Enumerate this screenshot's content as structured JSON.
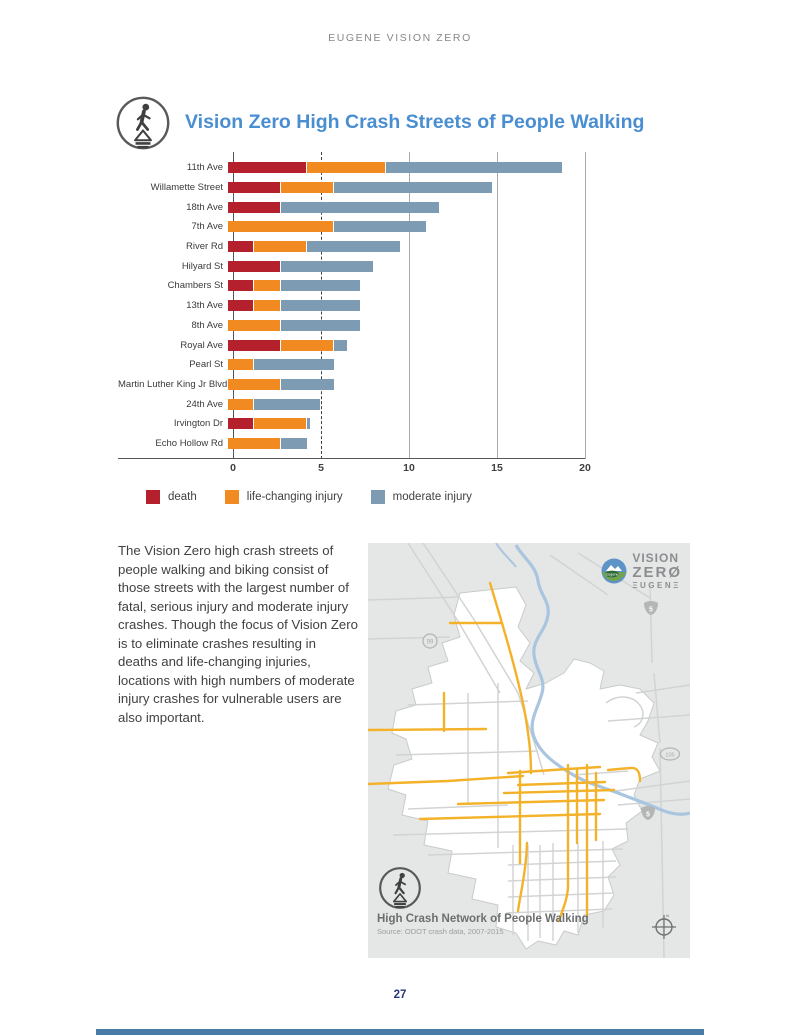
{
  "page": {
    "header": "EUGENE VISION ZERO",
    "page_number": "27",
    "footer_bar_color": "#4a7ba6"
  },
  "section": {
    "title": "Vision Zero High Crash Streets of People Walking",
    "title_color": "#4a8ed2",
    "icon": "pedestrian-signal-icon"
  },
  "chart_data": {
    "type": "bar",
    "orientation": "horizontal",
    "stacked": true,
    "categories": [
      "11th Ave",
      "Willamette Street",
      "18th Ave",
      "7th Ave",
      "River Rd",
      "Hilyard St",
      "Chambers St",
      "13th Ave",
      "8th Ave",
      "Royal  Ave",
      "Pearl St",
      "Martin Luther King Jr Blvd",
      "24th Ave",
      "Irvington Dr",
      "Echo Hollow Rd"
    ],
    "series": [
      {
        "name": "death",
        "color": "#b5202d",
        "values": [
          4.5,
          3,
          3,
          0,
          1.5,
          3,
          1.5,
          1.5,
          0,
          3,
          0,
          0,
          0,
          1.5,
          0
        ]
      },
      {
        "name": "life-changing injury",
        "color": "#f18a21",
        "values": [
          4.5,
          3,
          0,
          6,
          3,
          0,
          1.5,
          1.5,
          3,
          3,
          1.5,
          3,
          1.5,
          3,
          3
        ]
      },
      {
        "name": "moderate injury",
        "color": "#7d9cb3",
        "values": [
          10,
          9,
          9,
          5.25,
          5.25,
          5.25,
          4.5,
          4.5,
          4.5,
          0.75,
          4.5,
          3,
          3.75,
          0.15,
          1.5
        ]
      }
    ],
    "xlim": [
      0,
      20
    ],
    "x_ticks": [
      0,
      5,
      10,
      15,
      20
    ],
    "legend_position": "bottom",
    "grid": "vertical"
  },
  "body_text": "The Vision Zero high crash streets of people walking and biking consist of those streets with the largest number of fatal, serious injury and moderate injury crashes. Though the focus of Vision Zero is to eliminate crashes resulting in deaths and life-changing injuries, locations with high numbers of moderate injury crashes for vulnerable users are also important.",
  "map": {
    "logo": {
      "line1": "VISION",
      "line2": "ZERØ",
      "line3": "ΞUGENΞ",
      "badge_label": "Eugene",
      "icon": "eugene-logo"
    },
    "badges": {
      "hwy99": "99",
      "i5_top": "5",
      "hwy105": "105",
      "i5_bottom": "5"
    },
    "caption_title": "High Crash Network of People Walking",
    "caption_source": "Source: ODOT crash data, 2007-2015",
    "icons": [
      "pedestrian-signal-icon",
      "compass-icon"
    ],
    "colors": {
      "background": "#e5e7e6",
      "city_fill": "#ffffff",
      "roads": "#d2d4d3",
      "river": "#a9c5df",
      "high_crash_network": "#f3b229"
    }
  }
}
